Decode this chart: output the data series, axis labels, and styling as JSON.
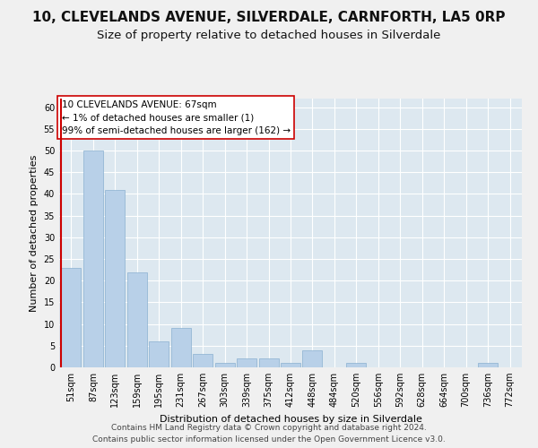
{
  "title": "10, CLEVELANDS AVENUE, SILVERDALE, CARNFORTH, LA5 0RP",
  "subtitle": "Size of property relative to detached houses in Silverdale",
  "xlabel": "Distribution of detached houses by size in Silverdale",
  "ylabel": "Number of detached properties",
  "categories": [
    "51sqm",
    "87sqm",
    "123sqm",
    "159sqm",
    "195sqm",
    "231sqm",
    "267sqm",
    "303sqm",
    "339sqm",
    "375sqm",
    "412sqm",
    "448sqm",
    "484sqm",
    "520sqm",
    "556sqm",
    "592sqm",
    "628sqm",
    "664sqm",
    "700sqm",
    "736sqm",
    "772sqm"
  ],
  "values": [
    23,
    50,
    41,
    22,
    6,
    9,
    3,
    1,
    2,
    2,
    1,
    4,
    0,
    1,
    0,
    0,
    0,
    0,
    0,
    1,
    0
  ],
  "bar_color": "#b8d0e8",
  "bar_edge_color": "#8ab0d0",
  "highlight_line_color": "#cc0000",
  "annotation_text": "10 CLEVELANDS AVENUE: 67sqm\n← 1% of detached houses are smaller (1)\n99% of semi-detached houses are larger (162) →",
  "annotation_box_color": "#ffffff",
  "annotation_box_edge": "#cc0000",
  "ylim": [
    0,
    62
  ],
  "yticks": [
    0,
    5,
    10,
    15,
    20,
    25,
    30,
    35,
    40,
    45,
    50,
    55,
    60
  ],
  "background_color": "#dde8f0",
  "grid_color": "#ffffff",
  "fig_background": "#f0f0f0",
  "footer_line1": "Contains HM Land Registry data © Crown copyright and database right 2024.",
  "footer_line2": "Contains public sector information licensed under the Open Government Licence v3.0.",
  "title_fontsize": 11,
  "subtitle_fontsize": 9.5,
  "axis_label_fontsize": 8,
  "tick_fontsize": 7,
  "annotation_fontsize": 7.5,
  "footer_fontsize": 6.5
}
